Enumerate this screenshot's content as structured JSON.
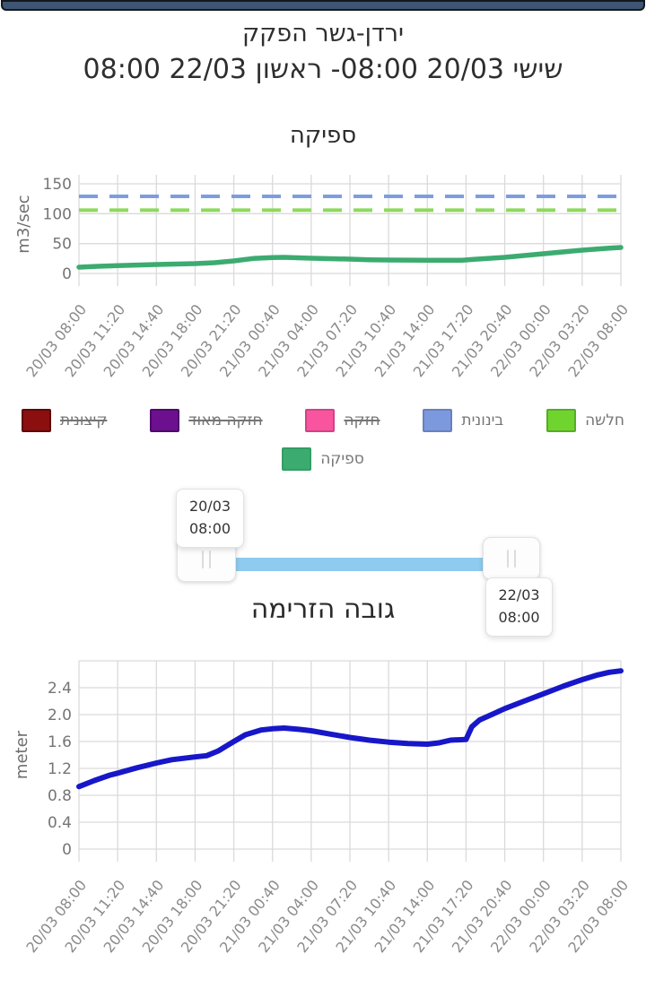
{
  "header": {
    "title": "ירדן-גשר הפקק",
    "date_range": "שישי 20/03 08:00- ראשון 22/03 08:00"
  },
  "colors": {
    "topbar": "#3e5674",
    "slider_track": "#8ecbef",
    "grid": "#dadada",
    "axis_text": "#757575",
    "xlabel_text": "#8a8a8a"
  },
  "legend": {
    "rows": [
      [
        {
          "label": "חלשה",
          "color": "#70d42f",
          "border": "#59ab24",
          "struck": false
        },
        {
          "label": "בינונית",
          "color": "#7d99de",
          "border": "#6880bf",
          "struck": false
        },
        {
          "label": "חזקה",
          "color": "#f9559f",
          "border": "#d1418a",
          "struck": true
        },
        {
          "label": "חזקה מאוד",
          "color": "#6d1090",
          "border": "#4f0a69",
          "struck": true
        },
        {
          "label": "קיצונית",
          "color": "#8b0f0f",
          "border": "#5e0808",
          "struck": true
        }
      ],
      [
        {
          "label": "ספיקה",
          "color": "#3cab70",
          "border": "#349d65",
          "struck": false
        }
      ]
    ]
  },
  "slider": {
    "start": {
      "date": "20/03",
      "time": "08:00"
    },
    "end": {
      "date": "22/03",
      "time": "08:00"
    }
  },
  "chart_data": [
    {
      "id": "flow",
      "type": "line",
      "title": "ספיקה",
      "ylabel": "m3/sec",
      "ylim": [
        0,
        165
      ],
      "yticks": [
        0,
        50,
        100,
        150
      ],
      "ytick_labels": [
        "0",
        "50",
        "100",
        "150"
      ],
      "x_tick_labels": [
        "20/03 08:00",
        "20/03 11:20",
        "20/03 14:40",
        "20/03 18:00",
        "20/03 21:20",
        "21/03 00:40",
        "21/03 04:00",
        "21/03 07:20",
        "21/03 10:40",
        "21/03 14:00",
        "21/03 17:20",
        "21/03 20:40",
        "22/03 00:00",
        "22/03 03:20",
        "22/03 08:00"
      ],
      "grid": true,
      "top_gridline": false,
      "legend_position": "bottom",
      "threshold_lines": [
        {
          "name": "בינונית",
          "value": 129,
          "color": "#7e9de0",
          "dashed": true
        },
        {
          "name": "חלשה",
          "value": 106,
          "color": "#8ed95e",
          "dashed": true
        }
      ],
      "series": [
        {
          "name": "ספיקה",
          "color": "#3cab70",
          "points": [
            [
              0,
              10.5
            ],
            [
              0.5,
              12
            ],
            [
              1,
              13
            ],
            [
              2,
              15
            ],
            [
              3,
              16.5
            ],
            [
              3.5,
              18
            ],
            [
              4,
              21
            ],
            [
              4.5,
              25
            ],
            [
              5,
              26.5
            ],
            [
              5.3,
              27
            ],
            [
              6,
              25.5
            ],
            [
              7,
              24
            ],
            [
              7.5,
              23
            ],
            [
              8,
              22.5
            ],
            [
              9,
              22
            ],
            [
              9.9,
              22
            ],
            [
              10.2,
              23.5
            ],
            [
              11,
              27
            ],
            [
              12,
              33
            ],
            [
              13,
              39
            ],
            [
              13.7,
              42.5
            ],
            [
              14,
              43.5
            ]
          ]
        }
      ]
    },
    {
      "id": "height",
      "type": "line",
      "title": "גובה הזרימה",
      "ylabel": "meter",
      "ylim": [
        0,
        2.8
      ],
      "yticks": [
        0,
        0.4,
        0.8,
        1.2,
        1.6,
        2.0,
        2.4
      ],
      "ytick_labels": [
        "0",
        "0.4",
        "0.8",
        "1.2",
        "1.6",
        "2.0",
        "2.4"
      ],
      "x_tick_labels": [
        "20/03 08:00",
        "20/03 11:20",
        "20/03 14:40",
        "20/03 18:00",
        "20/03 21:20",
        "21/03 00:40",
        "21/03 04:00",
        "21/03 07:20",
        "21/03 10:40",
        "21/03 14:00",
        "21/03 17:20",
        "21/03 20:40",
        "22/03 00:00",
        "22/03 03:20",
        "22/03 08:00"
      ],
      "grid": true,
      "top_gridline": true,
      "threshold_lines": [],
      "series": [
        {
          "name": "גובה הזרימה",
          "color": "#1717c9",
          "points": [
            [
              0,
              0.93
            ],
            [
              0.4,
              1.02
            ],
            [
              0.8,
              1.1
            ],
            [
              1,
              1.13
            ],
            [
              1.5,
              1.21
            ],
            [
              2,
              1.28
            ],
            [
              2.4,
              1.33
            ],
            [
              3,
              1.37
            ],
            [
              3.3,
              1.39
            ],
            [
              3.6,
              1.46
            ],
            [
              4,
              1.6
            ],
            [
              4.3,
              1.7
            ],
            [
              4.7,
              1.77
            ],
            [
              5,
              1.79
            ],
            [
              5.3,
              1.8
            ],
            [
              5.7,
              1.78
            ],
            [
              6,
              1.76
            ],
            [
              6.5,
              1.71
            ],
            [
              7,
              1.66
            ],
            [
              7.5,
              1.62
            ],
            [
              8,
              1.59
            ],
            [
              8.5,
              1.57
            ],
            [
              9,
              1.56
            ],
            [
              9.3,
              1.58
            ],
            [
              9.6,
              1.62
            ],
            [
              10,
              1.63
            ],
            [
              10.15,
              1.82
            ],
            [
              10.35,
              1.92
            ],
            [
              10.7,
              2.01
            ],
            [
              11,
              2.09
            ],
            [
              11.5,
              2.2
            ],
            [
              12,
              2.31
            ],
            [
              12.5,
              2.42
            ],
            [
              13,
              2.52
            ],
            [
              13.4,
              2.59
            ],
            [
              13.7,
              2.63
            ],
            [
              14,
              2.65
            ]
          ]
        }
      ]
    }
  ]
}
